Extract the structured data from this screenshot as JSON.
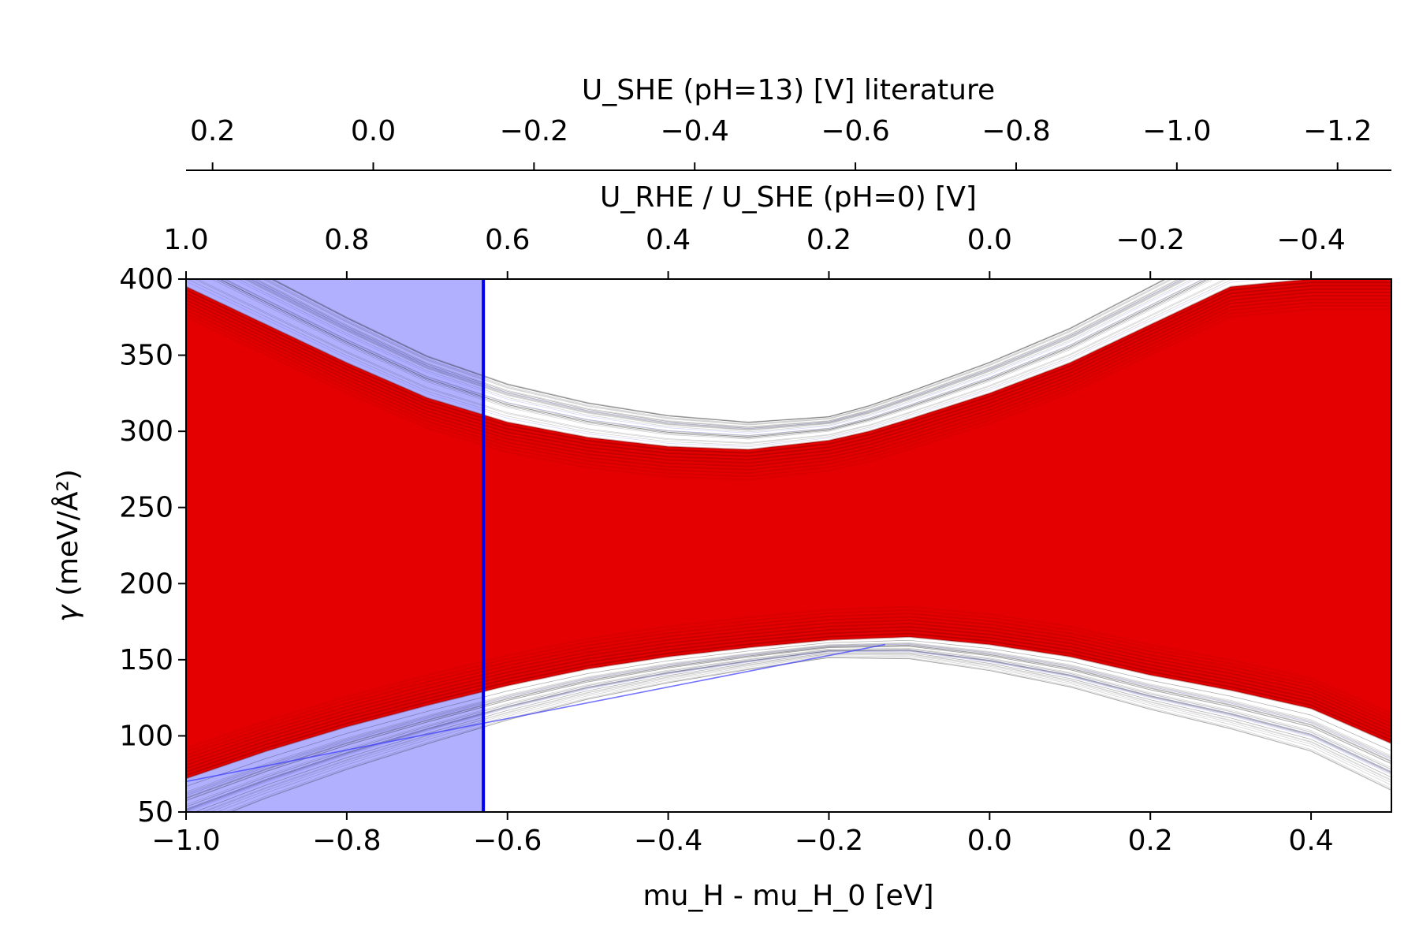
{
  "chart_data": {
    "type": "line",
    "title": "",
    "xlabel": "mu_H - mu_H_0 [eV]",
    "ylabel_symbol": "γ",
    "ylabel": " (meV/Å²)",
    "xlim": [
      -1.0,
      0.5
    ],
    "ylim": [
      50,
      400
    ],
    "x_ticks": [
      "−1.0",
      "−0.8",
      "−0.6",
      "−0.4",
      "−0.2",
      "0.0",
      "0.2",
      "0.4"
    ],
    "x_tick_values": [
      -1.0,
      -0.8,
      -0.6,
      -0.4,
      -0.2,
      0.0,
      0.2,
      0.4
    ],
    "y_ticks": [
      "50",
      "100",
      "150",
      "200",
      "250",
      "300",
      "350",
      "400"
    ],
    "y_tick_values": [
      50,
      100,
      150,
      200,
      250,
      300,
      350,
      400
    ],
    "secondary_axis_1": {
      "label": "U_RHE / U_SHE (pH=0) [V]",
      "relation": "U = -(mu_H - mu_H_0)",
      "ticks": [
        "1.0",
        "0.8",
        "0.6",
        "0.4",
        "0.2",
        "0.0",
        "−0.2",
        "−0.4"
      ],
      "tick_values": [
        1.0,
        0.8,
        0.6,
        0.4,
        0.2,
        0.0,
        -0.2,
        -0.4
      ]
    },
    "secondary_axis_2": {
      "label": "U_SHE (pH=13) [V] literature",
      "relation": "U = -(mu_H - mu_H_0) - 0.767",
      "ticks": [
        "0.2",
        "0.0",
        "−0.2",
        "−0.4",
        "−0.6",
        "−0.8",
        "−1.0",
        "−1.2"
      ],
      "tick_values": [
        0.2,
        0.0,
        -0.2,
        -0.4,
        -0.6,
        -0.8,
        -1.0,
        -1.2
      ]
    },
    "shaded_region": {
      "x_from": -1.0,
      "x_to": -0.63,
      "color": "#b0b0ff"
    },
    "vertical_line": {
      "x": -0.63,
      "color": "#0000ee"
    },
    "band": {
      "description_series": "ensemble of many linear segments per sample",
      "x": [
        -1.0,
        -0.9,
        -0.8,
        -0.7,
        -0.6,
        -0.5,
        -0.4,
        -0.3,
        -0.2,
        -0.15,
        -0.1,
        0.0,
        0.1,
        0.2,
        0.3,
        0.4,
        0.5
      ],
      "upper": [
        395,
        370,
        345,
        322,
        306,
        296,
        290,
        288,
        294,
        300,
        308,
        325,
        345,
        370,
        395,
        400,
        400
      ],
      "lower": [
        72,
        90,
        106,
        120,
        133,
        144,
        152,
        158,
        163,
        164,
        165,
        160,
        152,
        140,
        130,
        118,
        95
      ],
      "colors": {
        "fill": "#e40000",
        "edge": "#6a0000",
        "faint": "#2a2a2a",
        "blue": "#3a3aff"
      }
    }
  }
}
